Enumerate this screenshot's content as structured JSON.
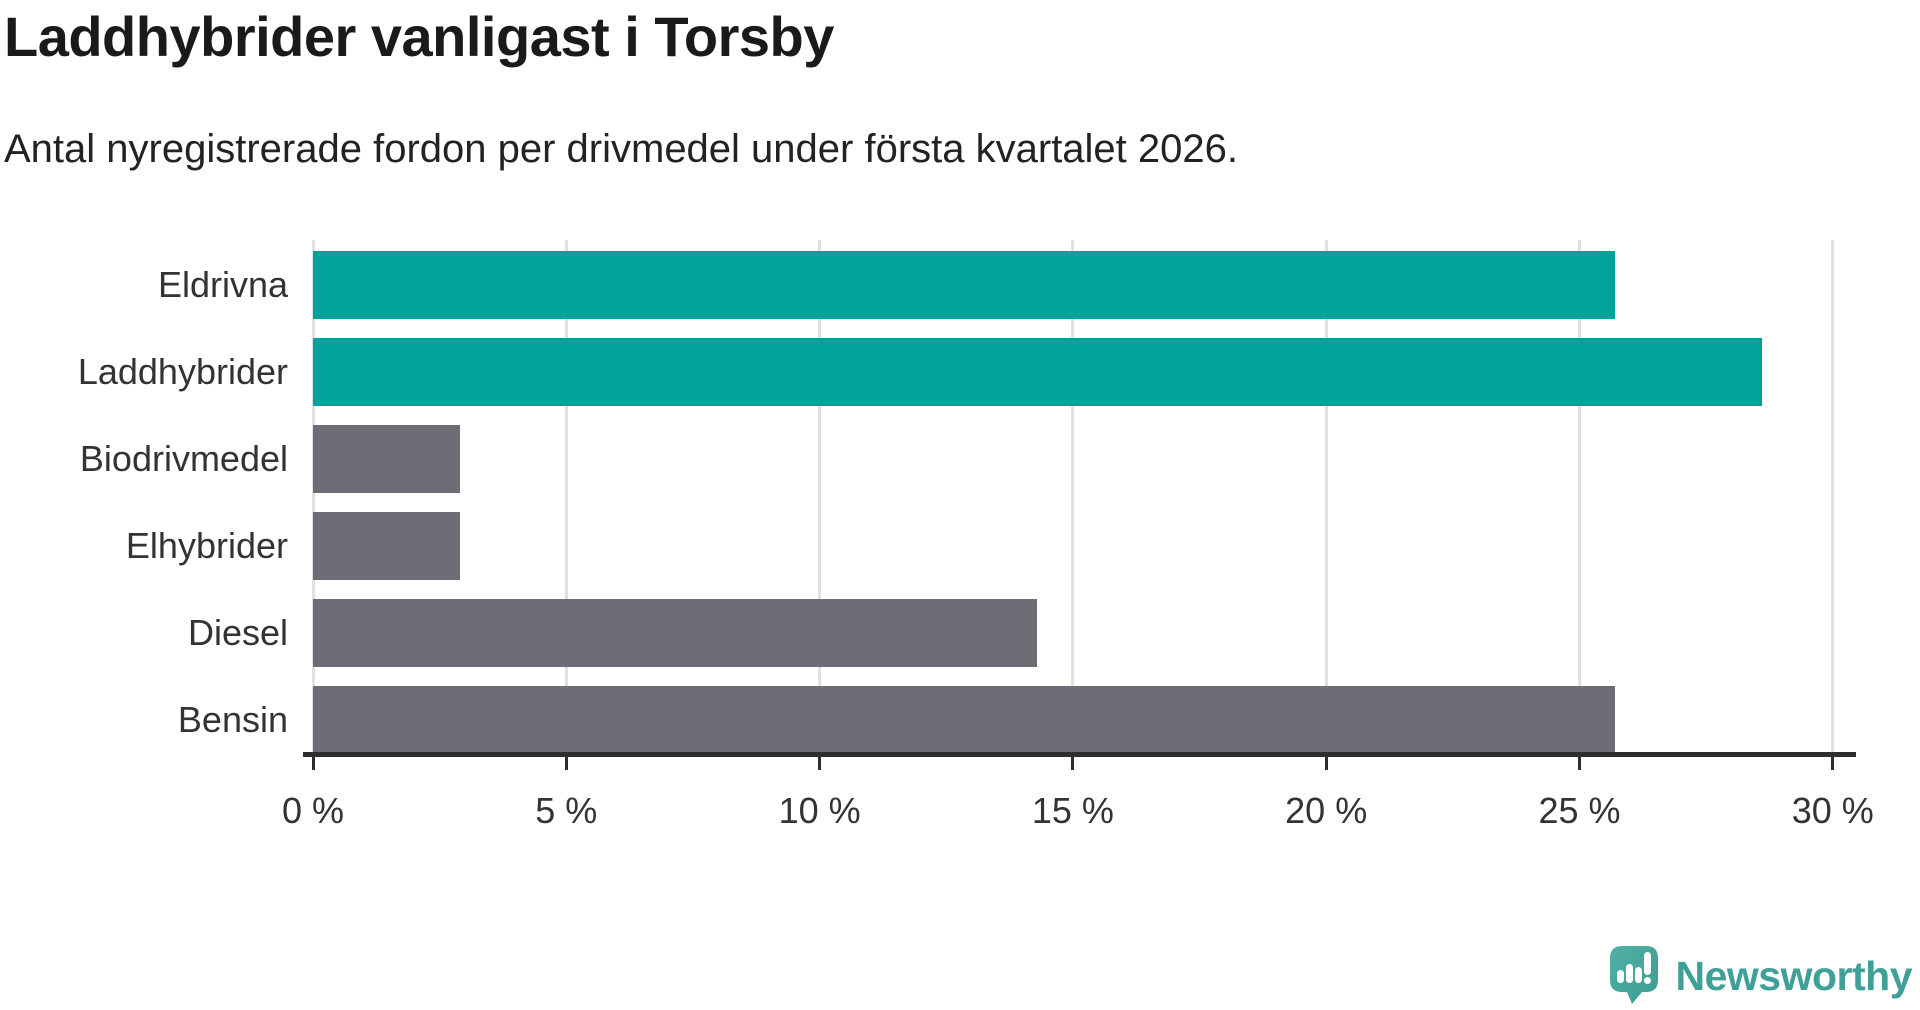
{
  "header": {
    "title": "Laddhybrider vanligast i Torsby",
    "subtitle": "Antal nyregistrerade fordon per drivmedel under första kvartalet 2026."
  },
  "chart_data": {
    "type": "bar",
    "orientation": "horizontal",
    "title": "Laddhybrider vanligast i Torsby",
    "subtitle": "Antal nyregistrerade fordon per drivmedel under första kvartalet 2026.",
    "categories": [
      "Eldrivna",
      "Laddhybrider",
      "Biodrivmedel",
      "Elhybrider",
      "Diesel",
      "Bensin"
    ],
    "values": [
      25.7,
      28.6,
      2.9,
      2.9,
      14.3,
      25.7
    ],
    "unit": "%",
    "bar_colors": [
      "#00a29a",
      "#00a29a",
      "#6d6e75",
      "#6d6e75",
      "#6d6e75",
      "#6d6e75"
    ],
    "highlight_color": "#00a29a",
    "base_color": "#6d6e75",
    "xlabel": "",
    "ylabel": "",
    "xlim": [
      0,
      30.3
    ],
    "x_ticks": [
      0,
      5,
      10,
      15,
      20,
      25,
      30
    ],
    "x_tick_labels": [
      "0 %",
      "5 %",
      "10 %",
      "15 %",
      "20 %",
      "25 %",
      "30 %"
    ],
    "grid": "vertical-only",
    "gridline_color": "#e1e1e1",
    "axis_color": "#2e2e2e",
    "legend": "none"
  },
  "footer": {
    "brand": "Newsworthy",
    "brand_color": "#3fa097",
    "logo_icon": "newsworthy-speech-bubble-bar-chart-icon"
  }
}
